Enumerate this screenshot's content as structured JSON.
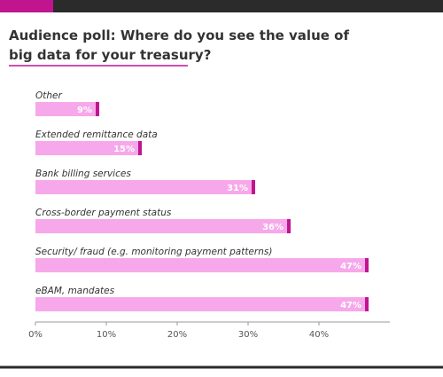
{
  "chart_data": {
    "type": "bar",
    "orientation": "horizontal",
    "title": "Audience poll: Where do you see the value of big data for your treasury?",
    "categories": [
      "Other",
      "Extended remittance data",
      "Bank billing services",
      "Cross-border payment status",
      "Security/ fraud (e.g. monitoring payment patterns)",
      "eBAM, mandates"
    ],
    "values": [
      9,
      15,
      31,
      36,
      47,
      47
    ],
    "value_labels": [
      "9%",
      "15%",
      "31%",
      "36%",
      "47%",
      "47%"
    ],
    "color": "#f7a8ea",
    "accent_color": "#c0158f",
    "xlim": [
      0,
      50
    ],
    "xticks": [
      {
        "value": 0,
        "label": "0%"
      },
      {
        "value": 10,
        "label": "10%"
      },
      {
        "value": 20,
        "label": "20%"
      },
      {
        "value": 30,
        "label": "30%"
      },
      {
        "value": 40,
        "label": "40%"
      }
    ],
    "grid": false
  }
}
